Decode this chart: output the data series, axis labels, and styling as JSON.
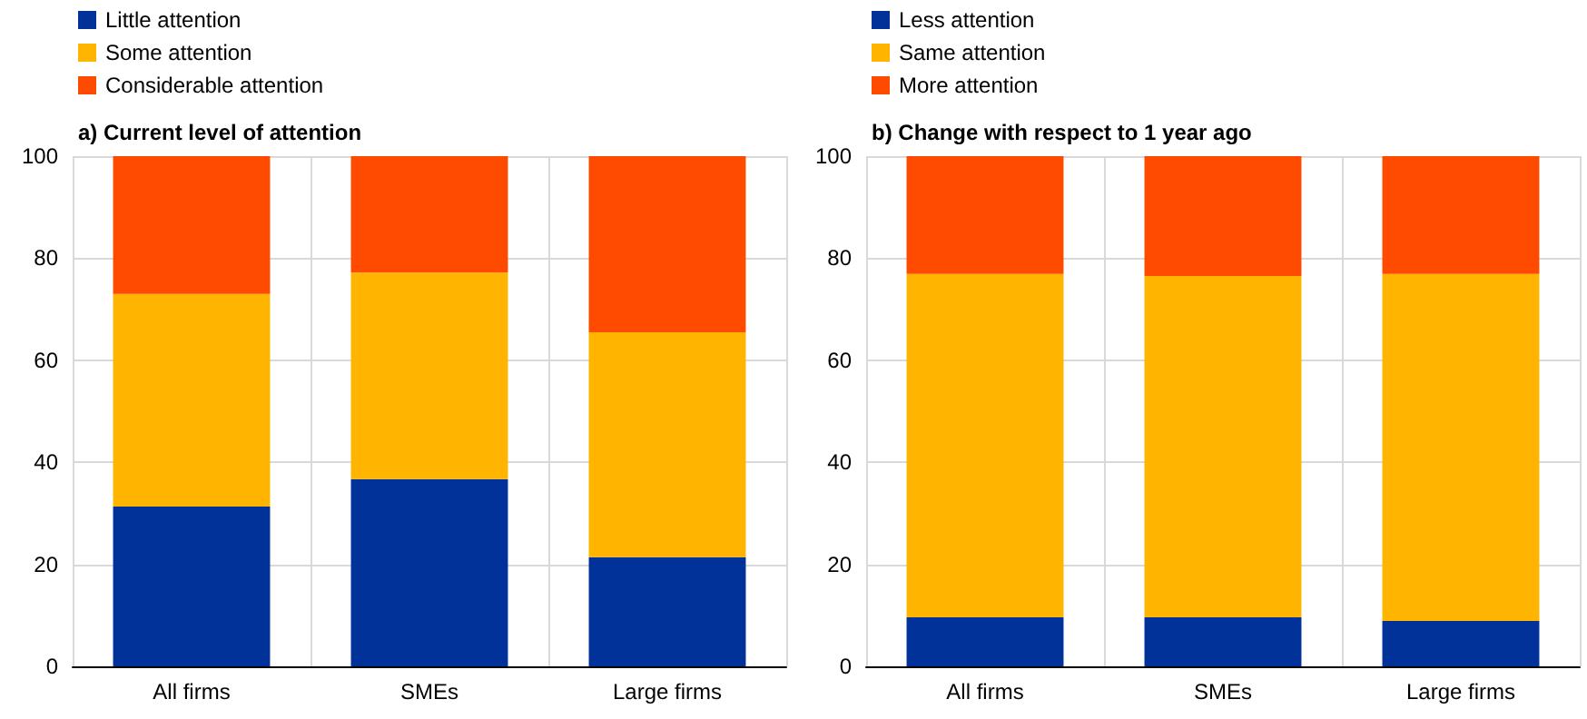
{
  "chart_data": [
    {
      "type": "bar",
      "title": "a) Current level of attention",
      "categories": [
        "All firms",
        "SMEs",
        "Large firms"
      ],
      "stacked": true,
      "series": [
        {
          "name": "Little attention",
          "color": "#003299",
          "values": [
            31.3,
            36.7,
            21.4
          ]
        },
        {
          "name": "Some attention",
          "color": "#ffb400",
          "values": [
            41.7,
            40.5,
            44.1
          ]
        },
        {
          "name": "Considerable attention",
          "color": "#ff4b00",
          "values": [
            27.0,
            22.8,
            34.5
          ]
        }
      ],
      "ylim": [
        0,
        100
      ],
      "yticks": [
        0,
        20,
        40,
        60,
        80,
        100
      ],
      "grid": true,
      "legend": "top left"
    },
    {
      "type": "bar",
      "title": "b) Change with respect to 1 year ago",
      "categories": [
        "All firms",
        "SMEs",
        "Large firms"
      ],
      "stacked": true,
      "series": [
        {
          "name": "Less attention",
          "color": "#003299",
          "values": [
            9.6,
            9.6,
            8.9
          ]
        },
        {
          "name": "Same attention",
          "color": "#ffb400",
          "values": [
            67.3,
            66.9,
            68.0
          ]
        },
        {
          "name": "More attention",
          "color": "#ff4b00",
          "values": [
            23.1,
            23.5,
            23.1
          ]
        }
      ],
      "ylim": [
        0,
        100
      ],
      "yticks": [
        0,
        20,
        40,
        60,
        80,
        100
      ],
      "grid": true,
      "legend": "top left"
    }
  ]
}
